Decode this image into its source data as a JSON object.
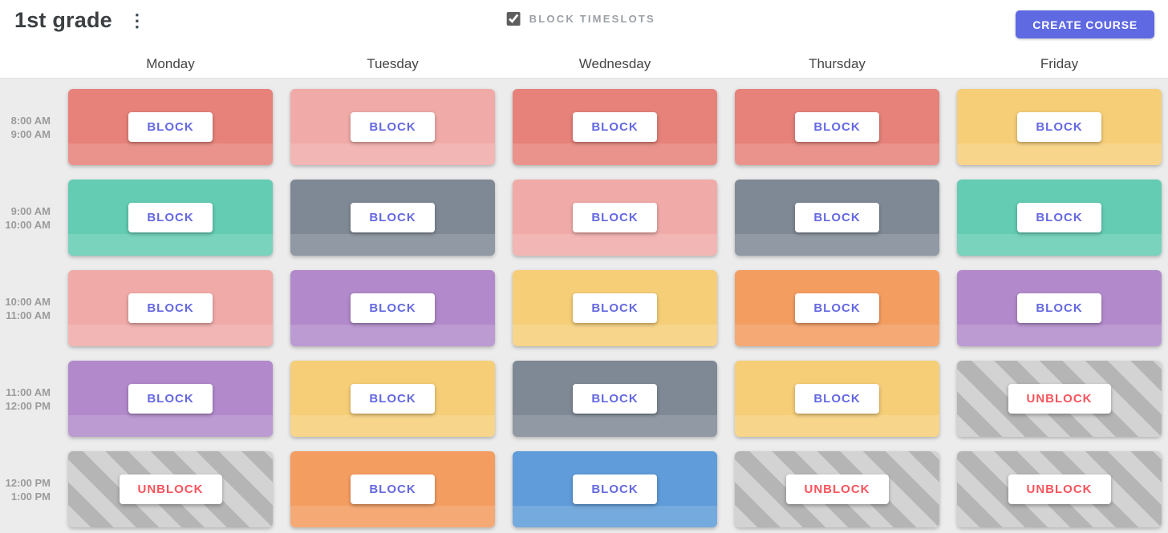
{
  "header": {
    "title": "1st grade",
    "menu_icon_glyph": "⋮",
    "checkbox": {
      "label": "BLOCK TIMESLOTS",
      "checked": true
    },
    "create_button": "CREATE COURSE"
  },
  "days": [
    "Monday",
    "Tuesday",
    "Wednesday",
    "Thursday",
    "Friday"
  ],
  "rows": [
    {
      "start": "8:00 AM",
      "end": "9:00 AM",
      "cells": [
        {
          "color": "salmon",
          "action": "BLOCK"
        },
        {
          "color": "pink",
          "action": "BLOCK"
        },
        {
          "color": "salmon",
          "action": "BLOCK"
        },
        {
          "color": "salmon",
          "action": "BLOCK"
        },
        {
          "color": "yellow",
          "action": "BLOCK"
        }
      ]
    },
    {
      "start": "9:00 AM",
      "end": "10:00 AM",
      "cells": [
        {
          "color": "teal",
          "action": "BLOCK"
        },
        {
          "color": "slate",
          "action": "BLOCK"
        },
        {
          "color": "pink",
          "action": "BLOCK"
        },
        {
          "color": "slate",
          "action": "BLOCK"
        },
        {
          "color": "teal",
          "action": "BLOCK"
        }
      ]
    },
    {
      "start": "10:00 AM",
      "end": "11:00 AM",
      "cells": [
        {
          "color": "pink",
          "action": "BLOCK"
        },
        {
          "color": "purple",
          "action": "BLOCK"
        },
        {
          "color": "yellow",
          "action": "BLOCK"
        },
        {
          "color": "orange",
          "action": "BLOCK"
        },
        {
          "color": "purple",
          "action": "BLOCK"
        }
      ]
    },
    {
      "start": "11:00 AM",
      "end": "12:00 PM",
      "cells": [
        {
          "color": "purple",
          "action": "BLOCK"
        },
        {
          "color": "yellow",
          "action": "BLOCK"
        },
        {
          "color": "slate",
          "action": "BLOCK"
        },
        {
          "color": "yellow",
          "action": "BLOCK"
        },
        {
          "color": "stripes",
          "action": "UNBLOCK"
        }
      ]
    },
    {
      "start": "12:00 PM",
      "end": "1:00 PM",
      "cells": [
        {
          "color": "stripes",
          "action": "UNBLOCK"
        },
        {
          "color": "orange",
          "action": "BLOCK"
        },
        {
          "color": "blue",
          "action": "BLOCK"
        },
        {
          "color": "stripes",
          "action": "UNBLOCK"
        },
        {
          "color": "stripes",
          "action": "UNBLOCK"
        }
      ]
    }
  ],
  "colors": {
    "salmon": "#E6827A",
    "pink": "#F0ABA8",
    "yellow": "#F6CE78",
    "teal": "#63CCB3",
    "slate": "#7F8995",
    "purple": "#B28ACB",
    "orange": "#F49D60",
    "blue": "#5F9CD9",
    "stripe_light": "#D3D3D3",
    "stripe_dark": "#B5B5B5",
    "accent_indigo": "#5F69E2",
    "block_text": "#6569E0",
    "unblock_text": "#F7545C"
  }
}
